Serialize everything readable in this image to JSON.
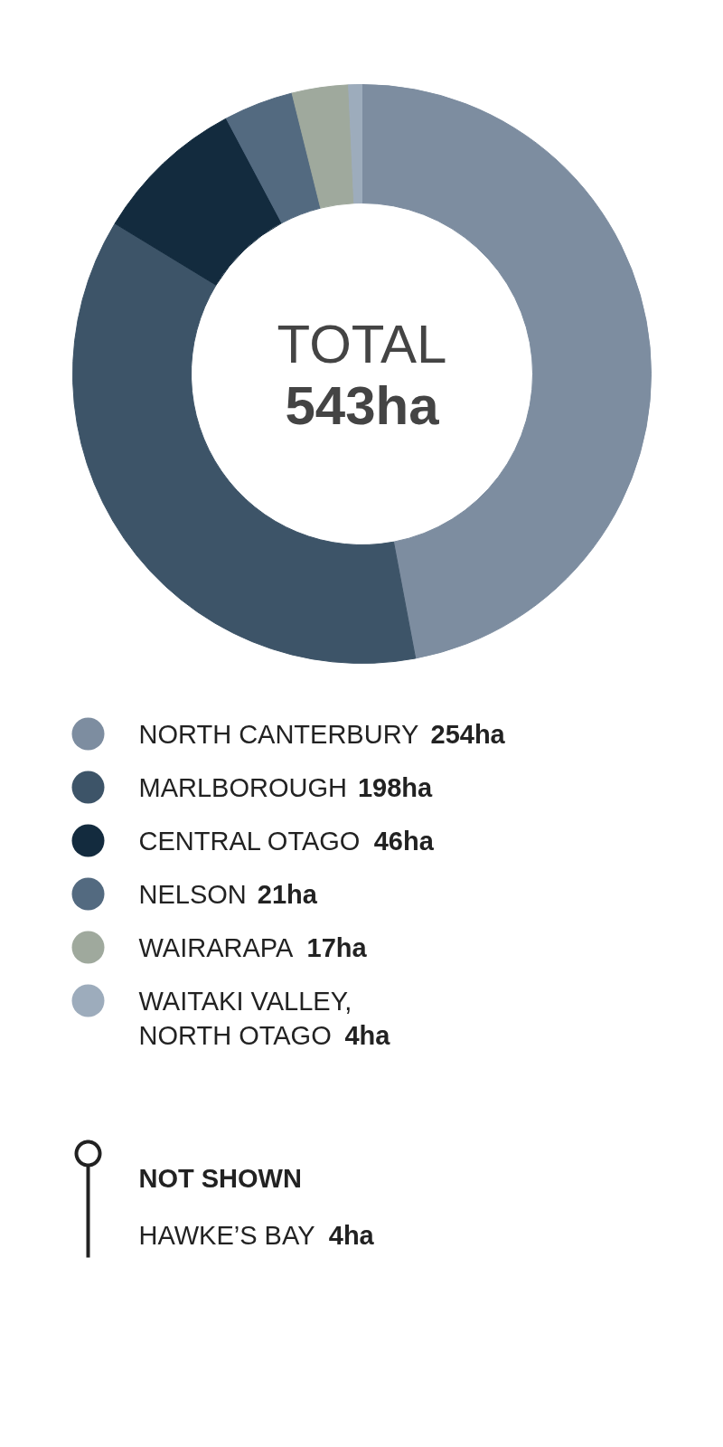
{
  "chart_data": {
    "type": "donut",
    "categories": [
      "NORTH CANTERBURY",
      "MARLBOROUGH",
      "CENTRAL OTAGO",
      "NELSON",
      "WAIRARAPA",
      "WAITAKI VALLEY, NORTH OTAGO"
    ],
    "values": [
      254,
      198,
      46,
      21,
      17,
      4
    ],
    "value_labels": [
      "254ha",
      "198ha",
      "46ha",
      "21ha",
      "17ha",
      "4ha"
    ],
    "colors": [
      "#7d8da0",
      "#3d5468",
      "#132b3e",
      "#536a80",
      "#9fa99d",
      "#9dacbc"
    ],
    "legend": "bottom",
    "annotations": [
      "TOTAL\n543ha",
      "NOT SHOWN",
      "HAWKE’S BAY 4ha"
    ]
  }
}
